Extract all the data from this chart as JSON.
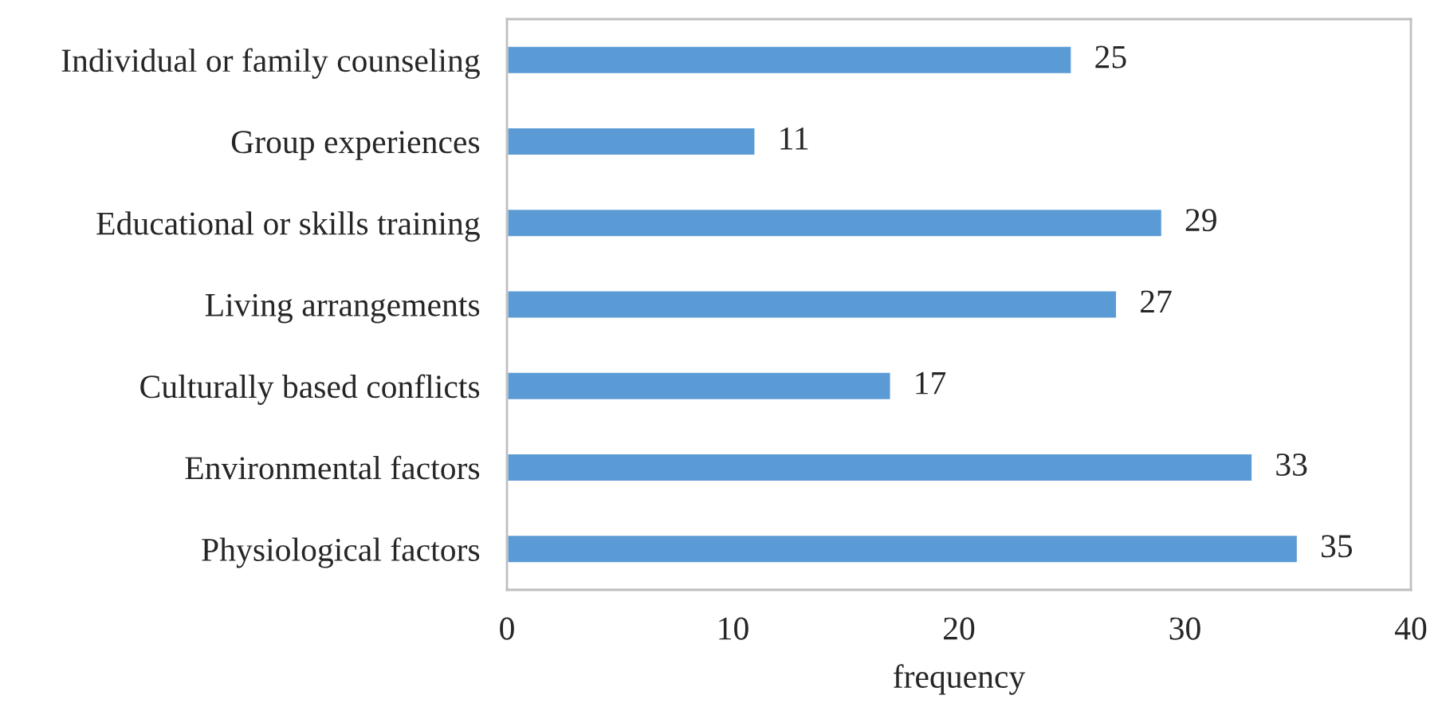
{
  "chart_data": {
    "type": "bar",
    "orientation": "horizontal",
    "xlabel": "frequency",
    "categories": [
      "Individual or family counseling",
      "Group experiences",
      "Educational or skills training",
      "Living arrangements",
      "Culturally based conflicts",
      "Environmental factors",
      "Physiological factors"
    ],
    "values": [
      25,
      11,
      29,
      27,
      17,
      33,
      35
    ],
    "color": "#5b9bd5",
    "xlim": [
      0,
      40
    ],
    "xticks": [
      0,
      10,
      20,
      30,
      40
    ],
    "grid": false,
    "data_labels": true
  }
}
